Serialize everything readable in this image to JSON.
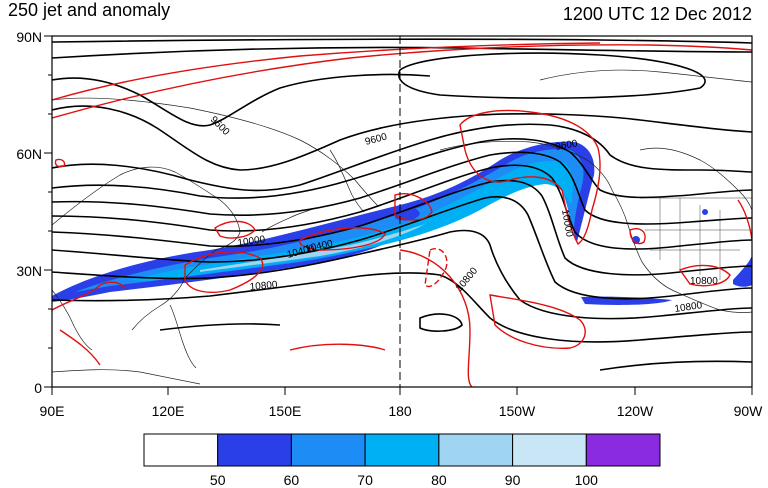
{
  "title_left": "250 jet and anomaly",
  "title_right": "1200 UTC 12 Dec 2012",
  "lat_ticks": [
    "90N",
    "60N",
    "30N",
    "0"
  ],
  "lon_ticks": [
    "90E",
    "120E",
    "150E",
    "180",
    "150W",
    "120W",
    "90W"
  ],
  "colorbar": {
    "labels": [
      "50",
      "60",
      "70",
      "80",
      "90",
      "100"
    ],
    "colors": [
      "#ffffff",
      "#2a3fe8",
      "#1e8cf5",
      "#00b0f5",
      "#9fd4f2",
      "#c9e6f6",
      "#8a2be2"
    ]
  },
  "contour_labels": [
    "9600",
    "9600",
    "9600",
    "10000",
    "10400",
    "10000",
    "10800",
    "10800",
    "10800",
    "10800",
    "10400"
  ],
  "colors": {
    "height_contour": "#000000",
    "anomaly_contour": "#e01010",
    "coastline": "#222222"
  }
}
